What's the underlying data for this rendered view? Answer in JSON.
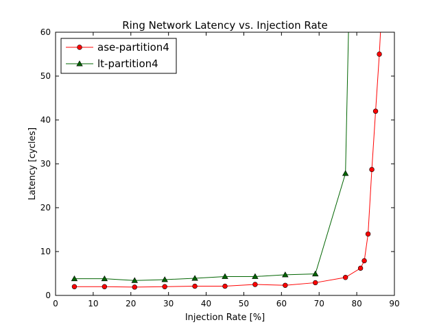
{
  "chart_data": {
    "type": "line",
    "title": "Ring Network Latency vs. Injection Rate",
    "xlabel": "Injection Rate [%]",
    "ylabel": "Latency [cycles]",
    "xlim": [
      0,
      90
    ],
    "ylim": [
      0,
      60
    ],
    "xticks": [
      0,
      10,
      20,
      30,
      40,
      50,
      60,
      70,
      80,
      90
    ],
    "yticks": [
      0,
      10,
      20,
      30,
      40,
      50,
      60
    ],
    "grid": false,
    "legend_position": "top-left",
    "series": [
      {
        "name": "ase-partition4",
        "color": "#ff0000",
        "marker": "circle",
        "x": [
          5,
          13,
          21,
          29,
          37,
          45,
          53,
          61,
          69,
          77,
          81,
          82,
          83,
          84,
          85,
          86,
          86.3
        ],
        "y": [
          2.0,
          2.0,
          1.9,
          2.0,
          2.1,
          2.1,
          2.5,
          2.3,
          2.9,
          4.1,
          6.2,
          7.9,
          14.0,
          28.7,
          42.0,
          55.0,
          60
        ]
      },
      {
        "name": "lt-partition4",
        "color": "#006400",
        "marker": "triangle",
        "x": [
          5,
          13,
          21,
          29,
          37,
          45,
          53,
          61,
          69,
          77,
          77.8
        ],
        "y": [
          3.8,
          3.8,
          3.4,
          3.6,
          3.9,
          4.3,
          4.3,
          4.7,
          4.9,
          27.8,
          60
        ]
      }
    ]
  }
}
